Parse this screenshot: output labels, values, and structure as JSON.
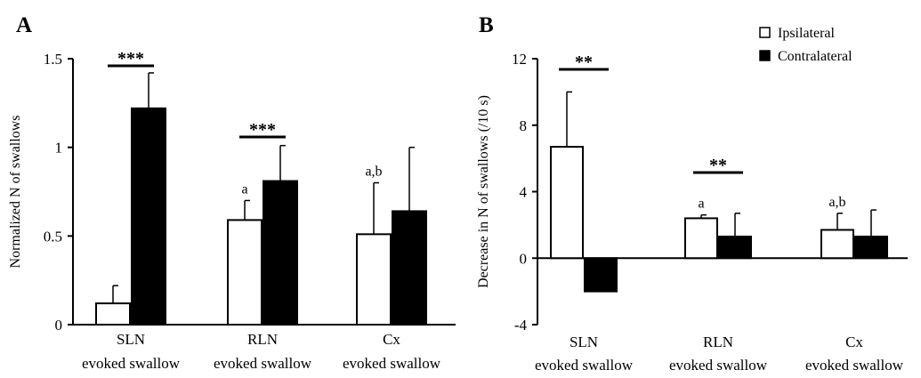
{
  "chart_data": [
    {
      "type": "bar",
      "panel": "A",
      "ylabel": "Normalized N of swallows",
      "ylim": [
        0,
        1.5
      ],
      "yticks": [
        "0",
        "0.5",
        "1",
        "1.5"
      ],
      "categories": [
        {
          "line1": "SLN",
          "line2": "evoked swallow"
        },
        {
          "line1": "RLN",
          "line2": "evoked swallow"
        },
        {
          "line1": "Cx",
          "line2": "evoked swallow"
        }
      ],
      "series": [
        {
          "name": "Ipsilateral",
          "fill": "#ffffff",
          "values": [
            0.12,
            0.59,
            0.51
          ],
          "errors": [
            0.1,
            0.11,
            0.29
          ]
        },
        {
          "name": "Contralateral",
          "fill": "#000000",
          "values": [
            1.22,
            0.81,
            0.64
          ],
          "errors": [
            0.2,
            0.2,
            0.36
          ]
        }
      ],
      "significance": [
        "***",
        "***",
        ""
      ],
      "annotations": [
        "",
        "a",
        "a,b"
      ]
    },
    {
      "type": "bar",
      "panel": "B",
      "ylabel": "Decrease in N of swallows (/10 s)",
      "ylim": [
        -4,
        12
      ],
      "yticks": [
        "-4",
        "0",
        "4",
        "8",
        "12"
      ],
      "categories": [
        {
          "line1": "SLN",
          "line2": "evoked swallow"
        },
        {
          "line1": "RLN",
          "line2": "evoked swallow"
        },
        {
          "line1": "Cx",
          "line2": "evoked swallow"
        }
      ],
      "series": [
        {
          "name": "Ipsilateral",
          "fill": "#ffffff",
          "values": [
            6.7,
            2.4,
            1.7
          ],
          "errors": [
            3.3,
            0.2,
            1.0
          ]
        },
        {
          "name": "Contralateral",
          "fill": "#000000",
          "values": [
            -2.0,
            1.3,
            1.3
          ],
          "errors": [
            0,
            1.4,
            1.6
          ]
        }
      ],
      "significance": [
        "**",
        "**",
        ""
      ],
      "annotations": [
        "",
        "a",
        "a,b"
      ],
      "legend": {
        "position": "top-right",
        "entries": [
          "Ipsilateral",
          "Contralateral"
        ]
      }
    }
  ]
}
